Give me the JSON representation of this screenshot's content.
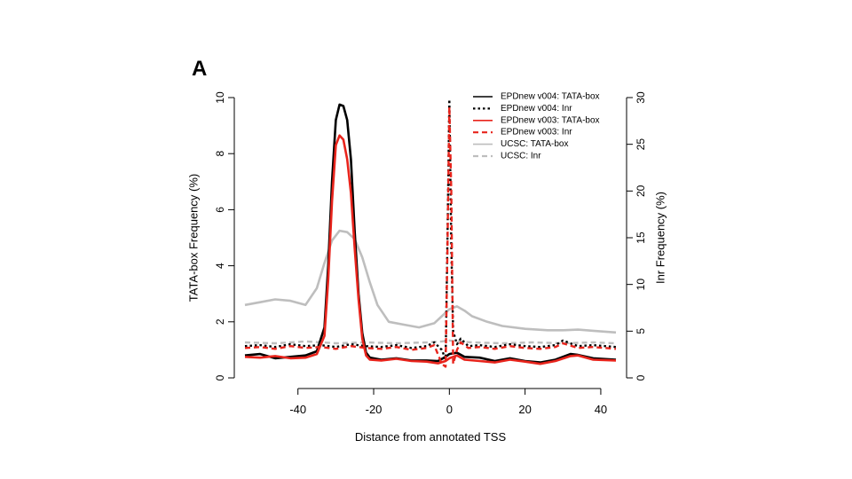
{
  "panel_label": "A",
  "chart_data": {
    "type": "line",
    "title": "",
    "xlabel": "Distance from annotated TSS",
    "ylabel_left": "TATA-box Frequency (%)",
    "ylabel_right": "Inr Frequency (%)",
    "xlim": [
      -54,
      44
    ],
    "ylim_left": [
      0,
      10
    ],
    "ylim_right": [
      0,
      30
    ],
    "x_ticks": [
      -40,
      -20,
      0,
      20,
      40
    ],
    "x_tick_labels": [
      "-40",
      "-20",
      "0",
      "20",
      "40"
    ],
    "y_left_ticks": [
      0,
      2,
      4,
      6,
      8,
      10
    ],
    "y_left_tick_labels": [
      "0",
      "2",
      "4",
      "6",
      "8",
      "10"
    ],
    "y_right_ticks": [
      0,
      5,
      10,
      15,
      20,
      25,
      30
    ],
    "y_right_tick_labels": [
      "0",
      "5",
      "10",
      "15",
      "20",
      "25",
      "30"
    ],
    "grid": false,
    "legend_position": "top-right",
    "series": [
      {
        "name": "EPDnew v004: TATA-box",
        "color": "#000000",
        "style": "solid",
        "axis": "left",
        "x": [
          -54,
          -50,
          -46,
          -42,
          -38,
          -35,
          -33,
          -32,
          -31,
          -30,
          -29,
          -28,
          -27,
          -26,
          -25,
          -24,
          -23,
          -22,
          -21,
          -18,
          -14,
          -10,
          -6,
          -3,
          -1,
          0,
          2,
          4,
          8,
          12,
          16,
          20,
          24,
          28,
          32,
          34,
          38,
          44
        ],
        "y": [
          0.8,
          0.85,
          0.7,
          0.75,
          0.8,
          0.95,
          1.8,
          4.0,
          7.0,
          9.2,
          9.75,
          9.7,
          9.2,
          7.8,
          5.2,
          3.0,
          1.6,
          0.9,
          0.72,
          0.65,
          0.7,
          0.62,
          0.62,
          0.6,
          0.75,
          0.85,
          0.9,
          0.75,
          0.72,
          0.6,
          0.7,
          0.6,
          0.55,
          0.65,
          0.85,
          0.82,
          0.7,
          0.65
        ]
      },
      {
        "name": "EPDnew v004: Inr",
        "color": "#000000",
        "style": "dotted",
        "axis": "right",
        "x": [
          -54,
          -50,
          -46,
          -42,
          -38,
          -34,
          -30,
          -26,
          -22,
          -18,
          -14,
          -10,
          -6,
          -4,
          -2,
          -1,
          -0.5,
          0,
          0.5,
          1,
          2,
          3,
          5,
          8,
          12,
          16,
          20,
          24,
          28,
          30,
          34,
          38,
          44
        ],
        "y": [
          3.4,
          3.5,
          3.3,
          3.6,
          3.4,
          3.5,
          3.3,
          3.6,
          3.4,
          3.3,
          3.5,
          3.2,
          3.4,
          3.8,
          3.0,
          2.0,
          15.0,
          29.8,
          14.0,
          5.0,
          3.6,
          4.2,
          3.4,
          3.5,
          3.3,
          3.6,
          3.4,
          3.3,
          3.5,
          4.0,
          3.4,
          3.5,
          3.3
        ]
      },
      {
        "name": "EPDnew v003: TATA-box",
        "color": "#e8241c",
        "style": "solid",
        "axis": "left",
        "x": [
          -54,
          -50,
          -46,
          -42,
          -38,
          -35,
          -33,
          -32,
          -31,
          -30,
          -29,
          -28,
          -27,
          -26,
          -25,
          -24,
          -23,
          -22,
          -21,
          -18,
          -14,
          -10,
          -6,
          -3,
          -1,
          0,
          2,
          4,
          8,
          12,
          16,
          20,
          24,
          28,
          32,
          34,
          38,
          44
        ],
        "y": [
          0.75,
          0.72,
          0.78,
          0.7,
          0.72,
          0.85,
          1.5,
          3.5,
          6.3,
          8.3,
          8.65,
          8.5,
          7.8,
          6.6,
          4.6,
          2.8,
          1.4,
          0.8,
          0.65,
          0.62,
          0.68,
          0.6,
          0.58,
          0.52,
          0.6,
          0.7,
          0.8,
          0.65,
          0.6,
          0.55,
          0.65,
          0.58,
          0.5,
          0.6,
          0.78,
          0.8,
          0.65,
          0.62
        ]
      },
      {
        "name": "EPDnew v003: Inr",
        "color": "#e8241c",
        "style": "dashed",
        "axis": "right",
        "x": [
          -54,
          -50,
          -46,
          -42,
          -38,
          -34,
          -30,
          -26,
          -22,
          -18,
          -14,
          -10,
          -6,
          -4,
          -2,
          -1,
          -0.5,
          0,
          0.5,
          1,
          2,
          3,
          5,
          8,
          12,
          16,
          20,
          24,
          28,
          30,
          34,
          38,
          44
        ],
        "y": [
          3.2,
          3.3,
          3.1,
          3.4,
          3.2,
          3.3,
          3.1,
          3.4,
          3.2,
          3.1,
          3.3,
          3.0,
          3.2,
          3.5,
          1.5,
          1.2,
          14.0,
          29.0,
          20.0,
          1.5,
          3.0,
          3.8,
          3.2,
          3.3,
          3.1,
          3.4,
          3.2,
          3.1,
          3.3,
          3.7,
          3.2,
          3.3,
          3.1
        ]
      },
      {
        "name": "UCSC: TATA-box",
        "color": "#bebebe",
        "style": "solid",
        "axis": "left",
        "x": [
          -54,
          -50,
          -46,
          -42,
          -38,
          -35,
          -33,
          -31,
          -29,
          -27,
          -25,
          -23,
          -21,
          -19,
          -16,
          -12,
          -8,
          -4,
          -2,
          0,
          2,
          4,
          6,
          10,
          14,
          20,
          26,
          30,
          34,
          38,
          44
        ],
        "y": [
          2.6,
          2.7,
          2.8,
          2.75,
          2.6,
          3.2,
          4.1,
          4.9,
          5.25,
          5.2,
          4.95,
          4.3,
          3.4,
          2.6,
          2.0,
          1.9,
          1.8,
          1.95,
          2.2,
          2.45,
          2.55,
          2.4,
          2.2,
          2.0,
          1.85,
          1.75,
          1.7,
          1.7,
          1.72,
          1.68,
          1.62
        ]
      },
      {
        "name": "UCSC: Inr",
        "color": "#bebebe",
        "style": "dashed",
        "axis": "right",
        "x": [
          -54,
          -46,
          -38,
          -30,
          -22,
          -14,
          -6,
          -2,
          0,
          2,
          6,
          14,
          22,
          30,
          38,
          44
        ],
        "y": [
          3.8,
          3.7,
          3.9,
          3.7,
          3.8,
          3.7,
          3.8,
          3.9,
          4.0,
          3.9,
          3.8,
          3.7,
          3.8,
          3.7,
          3.8,
          3.7
        ]
      }
    ]
  }
}
